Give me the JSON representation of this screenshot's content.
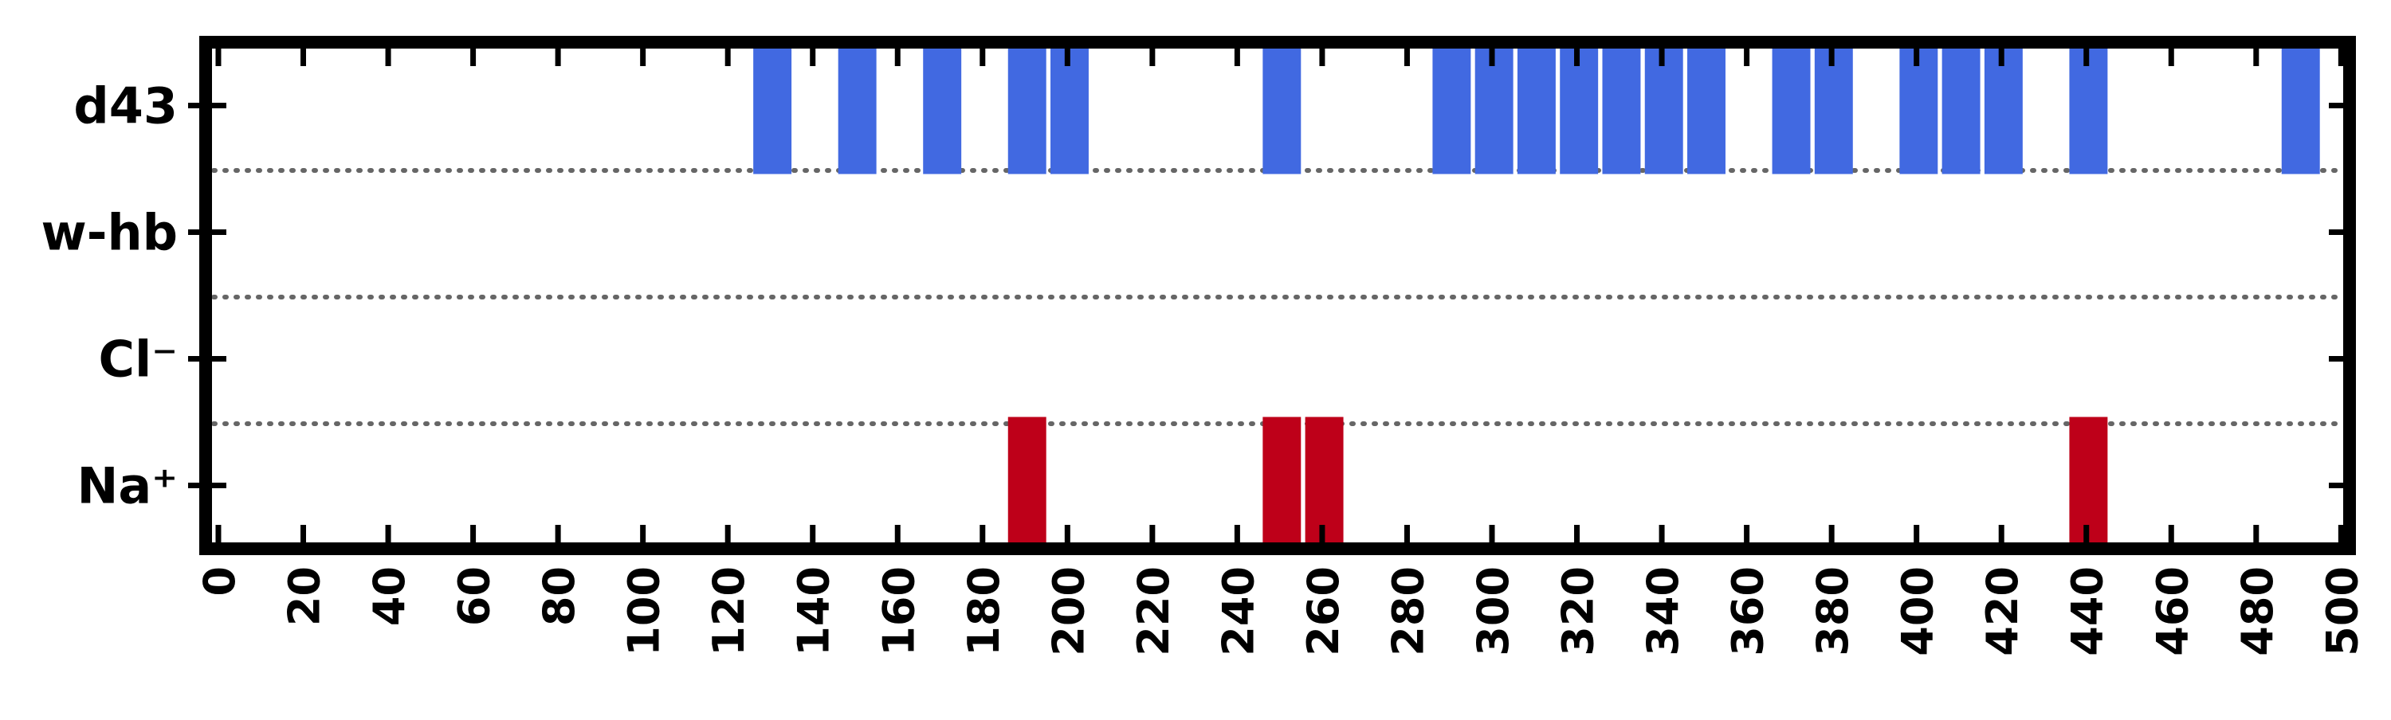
{
  "chart_data": {
    "type": "broken_barh",
    "categories": [
      "d43",
      "w-hb",
      "Cl⁻",
      "Na⁺"
    ],
    "xlim": [
      -3,
      502
    ],
    "xticks": [
      0,
      20,
      40,
      60,
      80,
      100,
      120,
      140,
      160,
      180,
      200,
      220,
      240,
      260,
      280,
      300,
      320,
      340,
      360,
      380,
      400,
      420,
      440,
      460,
      480,
      500
    ],
    "grid": "dotted separators between rows",
    "series": [
      {
        "category": "d43",
        "color": "#4169E1",
        "intervals": [
          [
            126,
            135
          ],
          [
            146,
            155
          ],
          [
            166,
            175
          ],
          [
            186,
            195
          ],
          [
            196,
            205
          ],
          [
            246,
            255
          ],
          [
            286,
            295
          ],
          [
            296,
            305
          ],
          [
            306,
            315
          ],
          [
            316,
            325
          ],
          [
            326,
            335
          ],
          [
            336,
            345
          ],
          [
            346,
            355
          ],
          [
            366,
            375
          ],
          [
            376,
            385
          ],
          [
            396,
            405
          ],
          [
            406,
            415
          ],
          [
            416,
            425
          ],
          [
            436,
            445
          ],
          [
            486,
            495
          ]
        ]
      },
      {
        "category": "w-hb",
        "color": "#4169E1",
        "intervals": []
      },
      {
        "category": "Cl⁻",
        "color": "#4169E1",
        "intervals": []
      },
      {
        "category": "Na⁺",
        "color": "#BE0019",
        "intervals": [
          [
            186,
            195
          ],
          [
            246,
            255
          ],
          [
            256,
            265
          ],
          [
            436,
            445
          ]
        ]
      }
    ]
  }
}
